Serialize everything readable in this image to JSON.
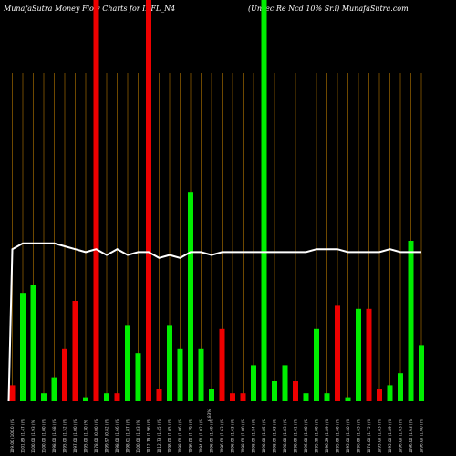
{
  "header": {
    "left_title": "MunafaSutra  Money Flow  Charts for IRFL_N4",
    "right_title": "(Unsec Re    Ncd 10% Sr.i) MunafaSutra.com"
  },
  "colors": {
    "background": "#000000",
    "grid": "#8b5a00",
    "up": "#00ee00",
    "down": "#ee0000",
    "line": "#ffffff"
  },
  "chart_data": {
    "type": "bar",
    "title": "MunafaSutra  Money Flow  Charts for IRFL_N4",
    "subtitle": "(Unsec Re    Ncd 10% Sr.i) MunafaSutra.com",
    "volume_ylim": [
      0,
      100
    ],
    "price_ylim": [
      0,
      100
    ],
    "grid": true,
    "bars": [
      {
        "label": "109.00 (100.0 ()%",
        "volume": 4,
        "color": "down",
        "price": 49
      },
      {
        "label": "1101.89 (1.47 ()%",
        "volume": 27,
        "color": "up",
        "price": 51
      },
      {
        "label": "1100.00 (1.93 (%",
        "volume": 29,
        "color": "up",
        "price": 51
      },
      {
        "label": "1100.00 (1.00 ()%",
        "volume": 2,
        "color": "up",
        "price": 51
      },
      {
        "label": "1098.00 (1.68 ()%",
        "volume": 6,
        "color": "up",
        "price": 51
      },
      {
        "label": "1095.00 (1.52 ()%",
        "volume": 13,
        "color": "down",
        "price": 50
      },
      {
        "label": "1097.00 (1.00 ()%",
        "volume": 25,
        "color": "down",
        "price": 49
      },
      {
        "label": "1095.00 (1.30 (%",
        "volume": 1,
        "color": "up",
        "price": 48
      },
      {
        "label": "1078.00 (0.00 ()%",
        "volume": 100,
        "color": "down",
        "price": 49
      },
      {
        "label": "1099.97 (0.82 ()%",
        "volume": 2,
        "color": "up",
        "price": 47
      },
      {
        "label": "1098.00 (1.66 ()%",
        "volume": 2,
        "color": "down",
        "price": 49
      },
      {
        "label": "1098.01 (1.87 ()%",
        "volume": 19,
        "color": "up",
        "price": 47
      },
      {
        "label": "1100.00 (1.83 (%",
        "volume": 12,
        "color": "up",
        "price": 48
      },
      {
        "label": "1012.79 (1.96 ()%",
        "volume": 100,
        "color": "down",
        "price": 48
      },
      {
        "label": "1012.73 (1.45 ()%",
        "volume": 3,
        "color": "down",
        "price": 46
      },
      {
        "label": "1098.00 (1.05 ()%",
        "volume": 19,
        "color": "up",
        "price": 47
      },
      {
        "label": "1098.00 (1.06 ()%",
        "volume": 13,
        "color": "up",
        "price": 46
      },
      {
        "label": "1096.00 (1.29 ()%",
        "volume": 52,
        "color": "up",
        "price": 48
      },
      {
        "label": "1094.00 (1.02 ()%",
        "volume": 13,
        "color": "up",
        "price": 48
      },
      {
        "label": "1096.00 (1.69 ()%",
        "volume": 3,
        "color": "up",
        "price": 47
      },
      {
        "label": "1096.00 (1.63 ()%",
        "volume": 18,
        "color": "down",
        "price": 48
      },
      {
        "label": "1096.00 (1.63 ()%",
        "volume": 2,
        "color": "down",
        "price": 48
      },
      {
        "label": "1098.00 (1.00 ()%",
        "volume": 2,
        "color": "down",
        "price": 48
      },
      {
        "label": "1098.00 (1.84 ()%",
        "volume": 9,
        "color": "up",
        "price": 48
      },
      {
        "label": "1090.00 (1.85 ()%",
        "volume": 100,
        "color": "up",
        "price": 48
      },
      {
        "label": "1098.00 (1.93 ()%",
        "volume": 5,
        "color": "up",
        "price": 48
      },
      {
        "label": "1098.00 (1.83 ()%",
        "volume": 9,
        "color": "up",
        "price": 48
      },
      {
        "label": "1098.00 (1.61 ()%",
        "volume": 5,
        "color": "down",
        "price": 48
      },
      {
        "label": "1096.00 (1.00 ()%",
        "volume": 2,
        "color": "up",
        "price": 48
      },
      {
        "label": "1095.90 (1.00 ()%",
        "volume": 18,
        "color": "up",
        "price": 49
      },
      {
        "label": "1096.29 (1.89 ()%",
        "volume": 2,
        "color": "up",
        "price": 49
      },
      {
        "label": "1095.00 (1.60 ()%",
        "volume": 24,
        "color": "down",
        "price": 49
      },
      {
        "label": "1095.00 (1.40 ()%",
        "volume": 1,
        "color": "up",
        "price": 48
      },
      {
        "label": "1096.00 (1.63 ()%",
        "volume": 23,
        "color": "up",
        "price": 48
      },
      {
        "label": "1074.00 (1.75 ()%",
        "volume": 23,
        "color": "down",
        "price": 48
      },
      {
        "label": "1095.00 (1.83 ()%",
        "volume": 3,
        "color": "down",
        "price": 48
      },
      {
        "label": "1095.00 (1.89 ()%",
        "volume": 4,
        "color": "up",
        "price": 49
      },
      {
        "label": "1096.00 (1.63 ()%",
        "volume": 7,
        "color": "up",
        "price": 48
      },
      {
        "label": "1096.00 (1.63 ()%",
        "volume": 40,
        "color": "up",
        "price": 48
      },
      {
        "label": "1096.00 (1.60 ()%",
        "volume": 14,
        "color": "up",
        "price": 48
      }
    ],
    "annotation": "6.83%"
  }
}
